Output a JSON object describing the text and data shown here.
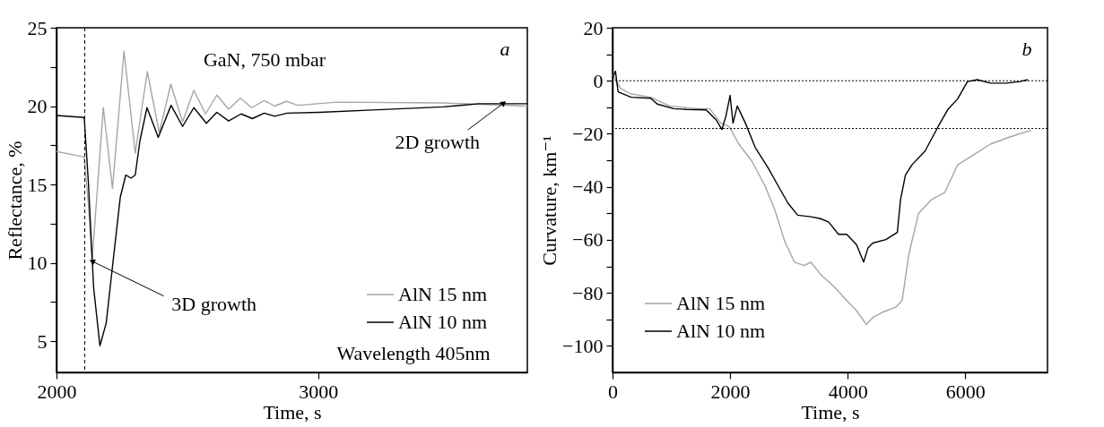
{
  "chart_data": [
    {
      "type": "line",
      "xlabel": "Time, s",
      "ylabel": "Reflectance, %",
      "xlim": [
        2000,
        3800
      ],
      "ylim": [
        3,
        25
      ],
      "xticks": [
        2000,
        3000
      ],
      "yticks": [
        5,
        {
          "value": 7.5,
          "label": null
        },
        10,
        {
          "value": 12.5,
          "label": null
        },
        15,
        {
          "value": 17.5,
          "label": null
        },
        20,
        {
          "value": 22.5,
          "label": null
        },
        25
      ],
      "legend": "bottom right",
      "series": [
        {
          "name": "AlN 15 nm",
          "color": "#a6a6a6",
          "x": [
            2000,
            2106,
            2122,
            2136,
            2179,
            2214,
            2258,
            2301,
            2347,
            2393,
            2437,
            2482,
            2525,
            2570,
            2613,
            2658,
            2703,
            2746,
            2794,
            2834,
            2879,
            2923,
            3072,
            3479,
            3800
          ],
          "values": [
            17.1,
            16.75,
            13.7,
            10.1,
            19.9,
            14.75,
            23.5,
            17.0,
            22.2,
            18.3,
            21.4,
            19.0,
            21.0,
            19.5,
            20.7,
            19.8,
            20.5,
            19.9,
            20.35,
            20.0,
            20.3,
            20.05,
            20.25,
            20.2,
            20.0
          ]
        },
        {
          "name": "AlN 10 nm",
          "color": "#000000",
          "x": [
            2000,
            2106,
            2122,
            2142,
            2166,
            2190,
            2217,
            2244,
            2265,
            2285,
            2301,
            2319,
            2346,
            2389,
            2438,
            2482,
            2525,
            2573,
            2613,
            2658,
            2706,
            2749,
            2794,
            2834,
            2882,
            3004,
            3208,
            3479,
            3615,
            3800
          ],
          "values": [
            19.4,
            19.27,
            15.1,
            8.4,
            4.7,
            6.15,
            10.2,
            14.2,
            15.6,
            15.4,
            15.6,
            17.8,
            19.9,
            18.0,
            20.05,
            18.7,
            19.9,
            18.9,
            19.6,
            19.05,
            19.5,
            19.2,
            19.55,
            19.35,
            19.55,
            19.6,
            19.75,
            19.95,
            20.15,
            20.15
          ]
        }
      ],
      "ref_lines": [
        {
          "axis": "x",
          "value": 2108,
          "line_style": "dashed",
          "color": "#000000"
        }
      ],
      "annotations": [
        "a",
        "GaN, 750 mbar",
        {
          "text": "2D growth",
          "x": 3710,
          "y": 20.2
        },
        {
          "text": "3D growth",
          "x": 2136,
          "y": 10.1
        },
        "Wavelength 405nm"
      ]
    },
    {
      "type": "line",
      "xlabel": "Time, s",
      "ylabel": "Curvature, km⁻¹",
      "xlim": [
        0,
        7400
      ],
      "ylim": [
        -110,
        20
      ],
      "xticks": [
        0,
        2000,
        4000,
        6000
      ],
      "yticks": [
        -100,
        {
          "value": -90,
          "label": null
        },
        -80,
        {
          "value": -70,
          "label": null
        },
        -60,
        {
          "value": -50,
          "label": null
        },
        -40,
        {
          "value": -30,
          "label": null
        },
        -20,
        {
          "value": -10,
          "label": null
        },
        0,
        {
          "value": 10,
          "label": null
        },
        20
      ],
      "legend": "bottom left",
      "series": [
        {
          "name": "AlN 15 nm",
          "color": "#a6a6a6",
          "x": [
            0,
            139,
            306,
            650,
            972,
            1428,
            1650,
            1844,
            1983,
            2150,
            2372,
            2594,
            2761,
            2928,
            3094,
            3261,
            3372,
            3539,
            3761,
            3983,
            4150,
            4317,
            4428,
            4594,
            4817,
            4928,
            5039,
            5206,
            5428,
            5650,
            5872,
            6150,
            6428,
            6761,
            7122
          ],
          "values": [
            2.3,
            -2.9,
            -4.9,
            -6.2,
            -9.5,
            -10.5,
            -10.5,
            -16,
            -17.3,
            -23.9,
            -30.4,
            -39.6,
            -48.7,
            -60.5,
            -68.4,
            -69.7,
            -68.4,
            -73,
            -77.5,
            -82.8,
            -86.7,
            -91.9,
            -89.3,
            -87.3,
            -85.4,
            -82.8,
            -65.7,
            -50,
            -44.8,
            -42.2,
            -31.7,
            -27.8,
            -23.9,
            -21.2,
            -18.6
          ]
        },
        {
          "name": "AlN 10 nm",
          "color": "#000000",
          "x": [
            0,
            50,
            95,
            317,
            650,
            761,
            1039,
            1261,
            1594,
            1761,
            1861,
            1928,
            2000,
            2050,
            2122,
            2261,
            2428,
            2650,
            2817,
            2983,
            3150,
            3372,
            3539,
            3678,
            3844,
            3983,
            4150,
            4272,
            4345,
            4428,
            4650,
            4845,
            4900,
            4983,
            5094,
            5317,
            5539,
            5706,
            5872,
            6039,
            6206,
            6428,
            6706,
            6928,
            7067
          ],
          "values": [
            1.0,
            3.6,
            -4.2,
            -6.2,
            -6.6,
            -8.8,
            -10.5,
            -10.8,
            -11.0,
            -14.7,
            -18.4,
            -13.4,
            -5.5,
            -16.0,
            -9.5,
            -16,
            -25.2,
            -33,
            -39.6,
            -46.1,
            -50.7,
            -51.3,
            -52,
            -53.3,
            -57.9,
            -57.9,
            -61.8,
            -68.4,
            -63.1,
            -61.2,
            -59.9,
            -57.2,
            -44.8,
            -35.6,
            -31.7,
            -26.5,
            -17.3,
            -10.8,
            -6.8,
            -0.3,
            0.4,
            -0.9,
            -0.9,
            -0.3,
            0.4
          ]
        }
      ],
      "ref_lines": [
        {
          "axis": "y",
          "value": 0,
          "line_style": "dotted",
          "color": "#000000"
        },
        {
          "axis": "y",
          "value": -18,
          "line_style": "dotted",
          "color": "#000000"
        }
      ],
      "annotations": [
        "b"
      ]
    }
  ]
}
